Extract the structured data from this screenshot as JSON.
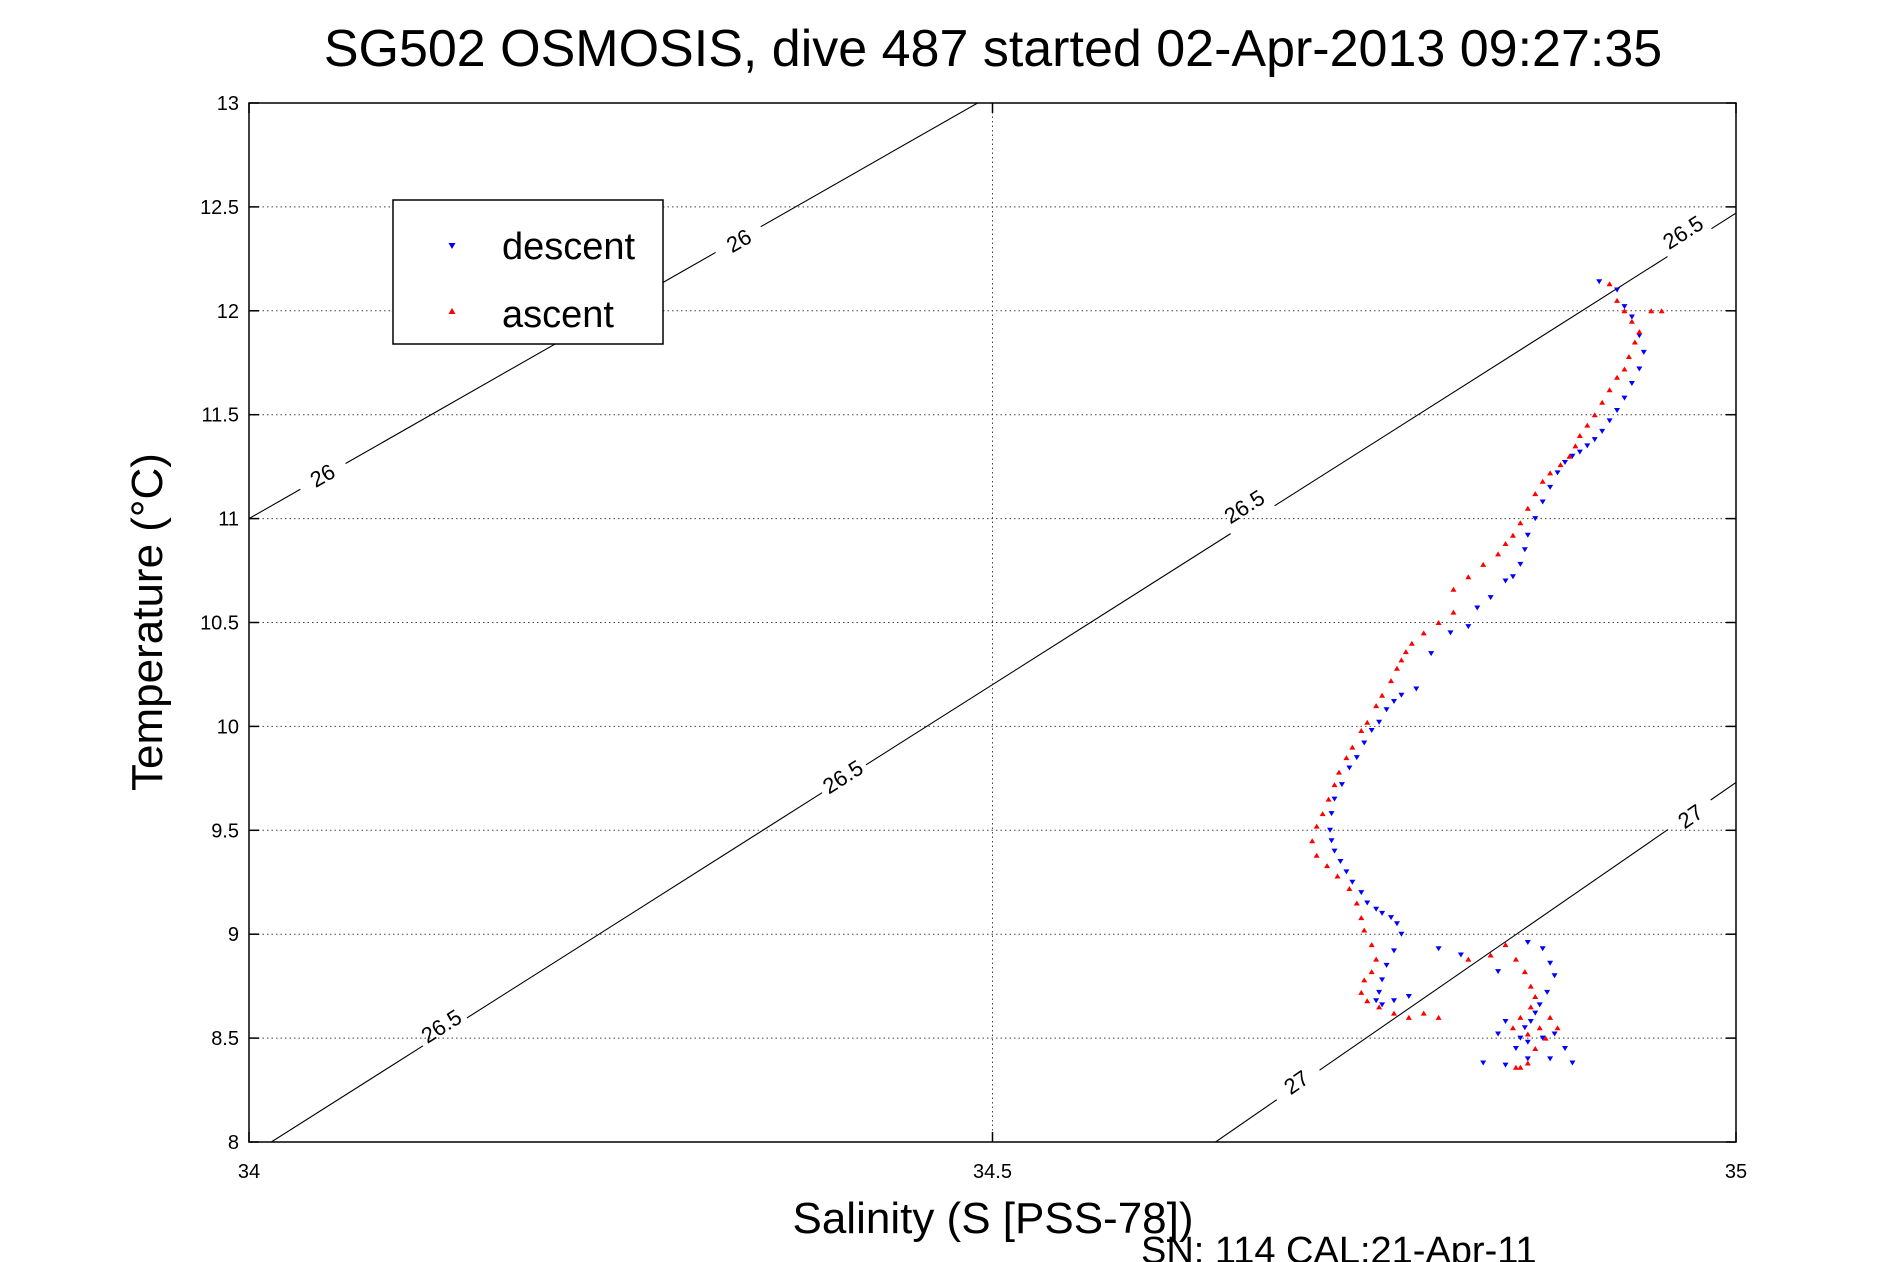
{
  "chart_data": {
    "type": "scatter",
    "title": "SG502 OSMOSIS, dive 487 started 02-Apr-2013 09:27:35",
    "xlabel": "Salinity (S [PSS-78])",
    "ylabel": "Temperature (°C)",
    "xlim": [
      34,
      35
    ],
    "ylim": [
      8,
      13
    ],
    "xticks": [
      34,
      34.5,
      35
    ],
    "xtick_labels": [
      "34",
      "34.5",
      "35"
    ],
    "yticks": [
      8,
      8.5,
      9,
      9.5,
      10,
      10.5,
      11,
      11.5,
      12,
      12.5,
      13
    ],
    "ytick_labels": [
      "8",
      "8.5",
      "9",
      "9.5",
      "10",
      "10.5",
      "11",
      "11.5",
      "12",
      "12.5",
      "13"
    ],
    "grid": true,
    "legend_position": "top-left",
    "footer": "SN: 114  CAL:21-Apr-11",
    "contours": [
      {
        "level": "26",
        "points": [
          [
            34,
            11.0
          ],
          [
            34.49,
            13.0
          ]
        ],
        "labels": [
          [
            34.05,
            11.2
          ],
          [
            34.33,
            12.33
          ]
        ]
      },
      {
        "level": "26.5",
        "points": [
          [
            34.015,
            8.0
          ],
          [
            35,
            12.47
          ]
        ],
        "labels": [
          [
            34.13,
            8.55
          ],
          [
            34.4,
            9.75
          ],
          [
            34.67,
            11.05
          ],
          [
            34.965,
            12.37
          ]
        ]
      },
      {
        "level": "27",
        "points": [
          [
            34.65,
            8.0
          ],
          [
            35,
            9.73
          ]
        ],
        "labels": [
          [
            34.705,
            8.28
          ],
          [
            34.97,
            9.56
          ]
        ]
      }
    ],
    "series": [
      {
        "name": "descent",
        "color": "#0000ff",
        "marker": "triangle-down",
        "points": [
          [
            34.908,
            12.14
          ],
          [
            34.92,
            12.1
          ],
          [
            34.925,
            12.02
          ],
          [
            34.93,
            11.97
          ],
          [
            34.935,
            11.88
          ],
          [
            34.938,
            11.8
          ],
          [
            34.935,
            11.72
          ],
          [
            34.93,
            11.65
          ],
          [
            34.925,
            11.58
          ],
          [
            34.92,
            11.52
          ],
          [
            34.915,
            11.47
          ],
          [
            34.91,
            11.42
          ],
          [
            34.905,
            11.38
          ],
          [
            34.9,
            11.35
          ],
          [
            34.895,
            11.32
          ],
          [
            34.89,
            11.3
          ],
          [
            34.885,
            11.27
          ],
          [
            34.88,
            11.22
          ],
          [
            34.875,
            11.15
          ],
          [
            34.87,
            11.08
          ],
          [
            34.865,
            11.0
          ],
          [
            34.86,
            10.92
          ],
          [
            34.858,
            10.85
          ],
          [
            34.855,
            10.78
          ],
          [
            34.85,
            10.72
          ],
          [
            34.845,
            10.7
          ],
          [
            34.835,
            10.62
          ],
          [
            34.826,
            10.57
          ],
          [
            34.82,
            10.48
          ],
          [
            34.808,
            10.45
          ],
          [
            34.795,
            10.35
          ],
          [
            34.785,
            10.18
          ],
          [
            34.775,
            10.15
          ],
          [
            34.77,
            10.12
          ],
          [
            34.765,
            10.08
          ],
          [
            34.76,
            10.02
          ],
          [
            34.755,
            9.98
          ],
          [
            34.75,
            9.92
          ],
          [
            34.745,
            9.85
          ],
          [
            34.74,
            9.8
          ],
          [
            34.735,
            9.72
          ],
          [
            34.73,
            9.65
          ],
          [
            34.728,
            9.58
          ],
          [
            34.727,
            9.5
          ],
          [
            34.728,
            9.45
          ],
          [
            34.73,
            9.4
          ],
          [
            34.734,
            9.35
          ],
          [
            34.738,
            9.3
          ],
          [
            34.742,
            9.25
          ],
          [
            34.748,
            9.2
          ],
          [
            34.752,
            9.15
          ],
          [
            34.758,
            9.12
          ],
          [
            34.762,
            9.1
          ],
          [
            34.768,
            9.08
          ],
          [
            34.772,
            9.05
          ],
          [
            34.775,
            9.0
          ],
          [
            34.77,
            8.92
          ],
          [
            34.765,
            8.85
          ],
          [
            34.762,
            8.78
          ],
          [
            34.76,
            8.72
          ],
          [
            34.758,
            8.68
          ],
          [
            34.762,
            8.66
          ],
          [
            34.77,
            8.68
          ],
          [
            34.78,
            8.7
          ],
          [
            34.8,
            8.93
          ],
          [
            34.815,
            8.9
          ],
          [
            34.84,
            8.82
          ],
          [
            34.86,
            8.96
          ],
          [
            34.87,
            8.93
          ],
          [
            34.875,
            8.86
          ],
          [
            34.878,
            8.8
          ],
          [
            34.873,
            8.72
          ],
          [
            34.868,
            8.66
          ],
          [
            34.865,
            8.62
          ],
          [
            34.862,
            8.58
          ],
          [
            34.858,
            8.55
          ],
          [
            34.855,
            8.5
          ],
          [
            34.852,
            8.45
          ],
          [
            34.86,
            8.48
          ],
          [
            34.87,
            8.5
          ],
          [
            34.878,
            8.52
          ],
          [
            34.885,
            8.45
          ],
          [
            34.89,
            8.38
          ],
          [
            34.875,
            8.4
          ],
          [
            34.86,
            8.4
          ],
          [
            34.845,
            8.37
          ],
          [
            34.83,
            8.38
          ],
          [
            34.84,
            8.52
          ],
          [
            34.845,
            8.58
          ]
        ]
      },
      {
        "name": "ascent",
        "color": "#ff0000",
        "marker": "triangle-up",
        "points": [
          [
            34.915,
            12.13
          ],
          [
            34.92,
            12.05
          ],
          [
            34.925,
            12.0
          ],
          [
            34.93,
            11.95
          ],
          [
            34.935,
            11.9
          ],
          [
            34.943,
            12.0
          ],
          [
            34.95,
            12.0
          ],
          [
            34.932,
            11.85
          ],
          [
            34.928,
            11.78
          ],
          [
            34.925,
            11.72
          ],
          [
            34.92,
            11.68
          ],
          [
            34.915,
            11.62
          ],
          [
            34.91,
            11.56
          ],
          [
            34.905,
            11.5
          ],
          [
            34.9,
            11.45
          ],
          [
            34.895,
            11.4
          ],
          [
            34.892,
            11.35
          ],
          [
            34.888,
            11.3
          ],
          [
            34.882,
            11.26
          ],
          [
            34.875,
            11.22
          ],
          [
            34.87,
            11.18
          ],
          [
            34.865,
            11.12
          ],
          [
            34.86,
            11.05
          ],
          [
            34.855,
            10.98
          ],
          [
            34.85,
            10.92
          ],
          [
            34.845,
            10.88
          ],
          [
            34.84,
            10.83
          ],
          [
            34.83,
            10.78
          ],
          [
            34.82,
            10.72
          ],
          [
            34.81,
            10.66
          ],
          [
            34.81,
            10.55
          ],
          [
            34.8,
            10.5
          ],
          [
            34.79,
            10.45
          ],
          [
            34.782,
            10.4
          ],
          [
            34.778,
            10.36
          ],
          [
            34.775,
            10.32
          ],
          [
            34.772,
            10.28
          ],
          [
            34.768,
            10.22
          ],
          [
            34.762,
            10.15
          ],
          [
            34.758,
            10.1
          ],
          [
            34.752,
            10.02
          ],
          [
            34.748,
            9.98
          ],
          [
            34.742,
            9.9
          ],
          [
            34.738,
            9.85
          ],
          [
            34.733,
            9.78
          ],
          [
            34.73,
            9.72
          ],
          [
            34.726,
            9.65
          ],
          [
            34.722,
            9.58
          ],
          [
            34.718,
            9.52
          ],
          [
            34.715,
            9.45
          ],
          [
            34.718,
            9.38
          ],
          [
            34.725,
            9.33
          ],
          [
            34.732,
            9.28
          ],
          [
            34.74,
            9.22
          ],
          [
            34.745,
            9.15
          ],
          [
            34.748,
            9.08
          ],
          [
            34.75,
            9.02
          ],
          [
            34.755,
            8.95
          ],
          [
            34.758,
            8.88
          ],
          [
            34.755,
            8.82
          ],
          [
            34.75,
            8.78
          ],
          [
            34.748,
            8.72
          ],
          [
            34.752,
            8.68
          ],
          [
            34.76,
            8.65
          ],
          [
            34.77,
            8.62
          ],
          [
            34.78,
            8.6
          ],
          [
            34.79,
            8.62
          ],
          [
            34.8,
            8.6
          ],
          [
            34.82,
            8.88
          ],
          [
            34.835,
            8.9
          ],
          [
            34.845,
            8.95
          ],
          [
            34.852,
            8.88
          ],
          [
            34.858,
            8.82
          ],
          [
            34.862,
            8.75
          ],
          [
            34.865,
            8.7
          ],
          [
            34.862,
            8.65
          ],
          [
            34.855,
            8.6
          ],
          [
            34.85,
            8.55
          ],
          [
            34.86,
            8.52
          ],
          [
            34.868,
            8.55
          ],
          [
            34.875,
            8.6
          ],
          [
            34.88,
            8.55
          ],
          [
            34.872,
            8.5
          ],
          [
            34.865,
            8.45
          ],
          [
            34.86,
            8.38
          ],
          [
            34.855,
            8.36
          ],
          [
            34.852,
            8.36
          ]
        ]
      }
    ]
  }
}
